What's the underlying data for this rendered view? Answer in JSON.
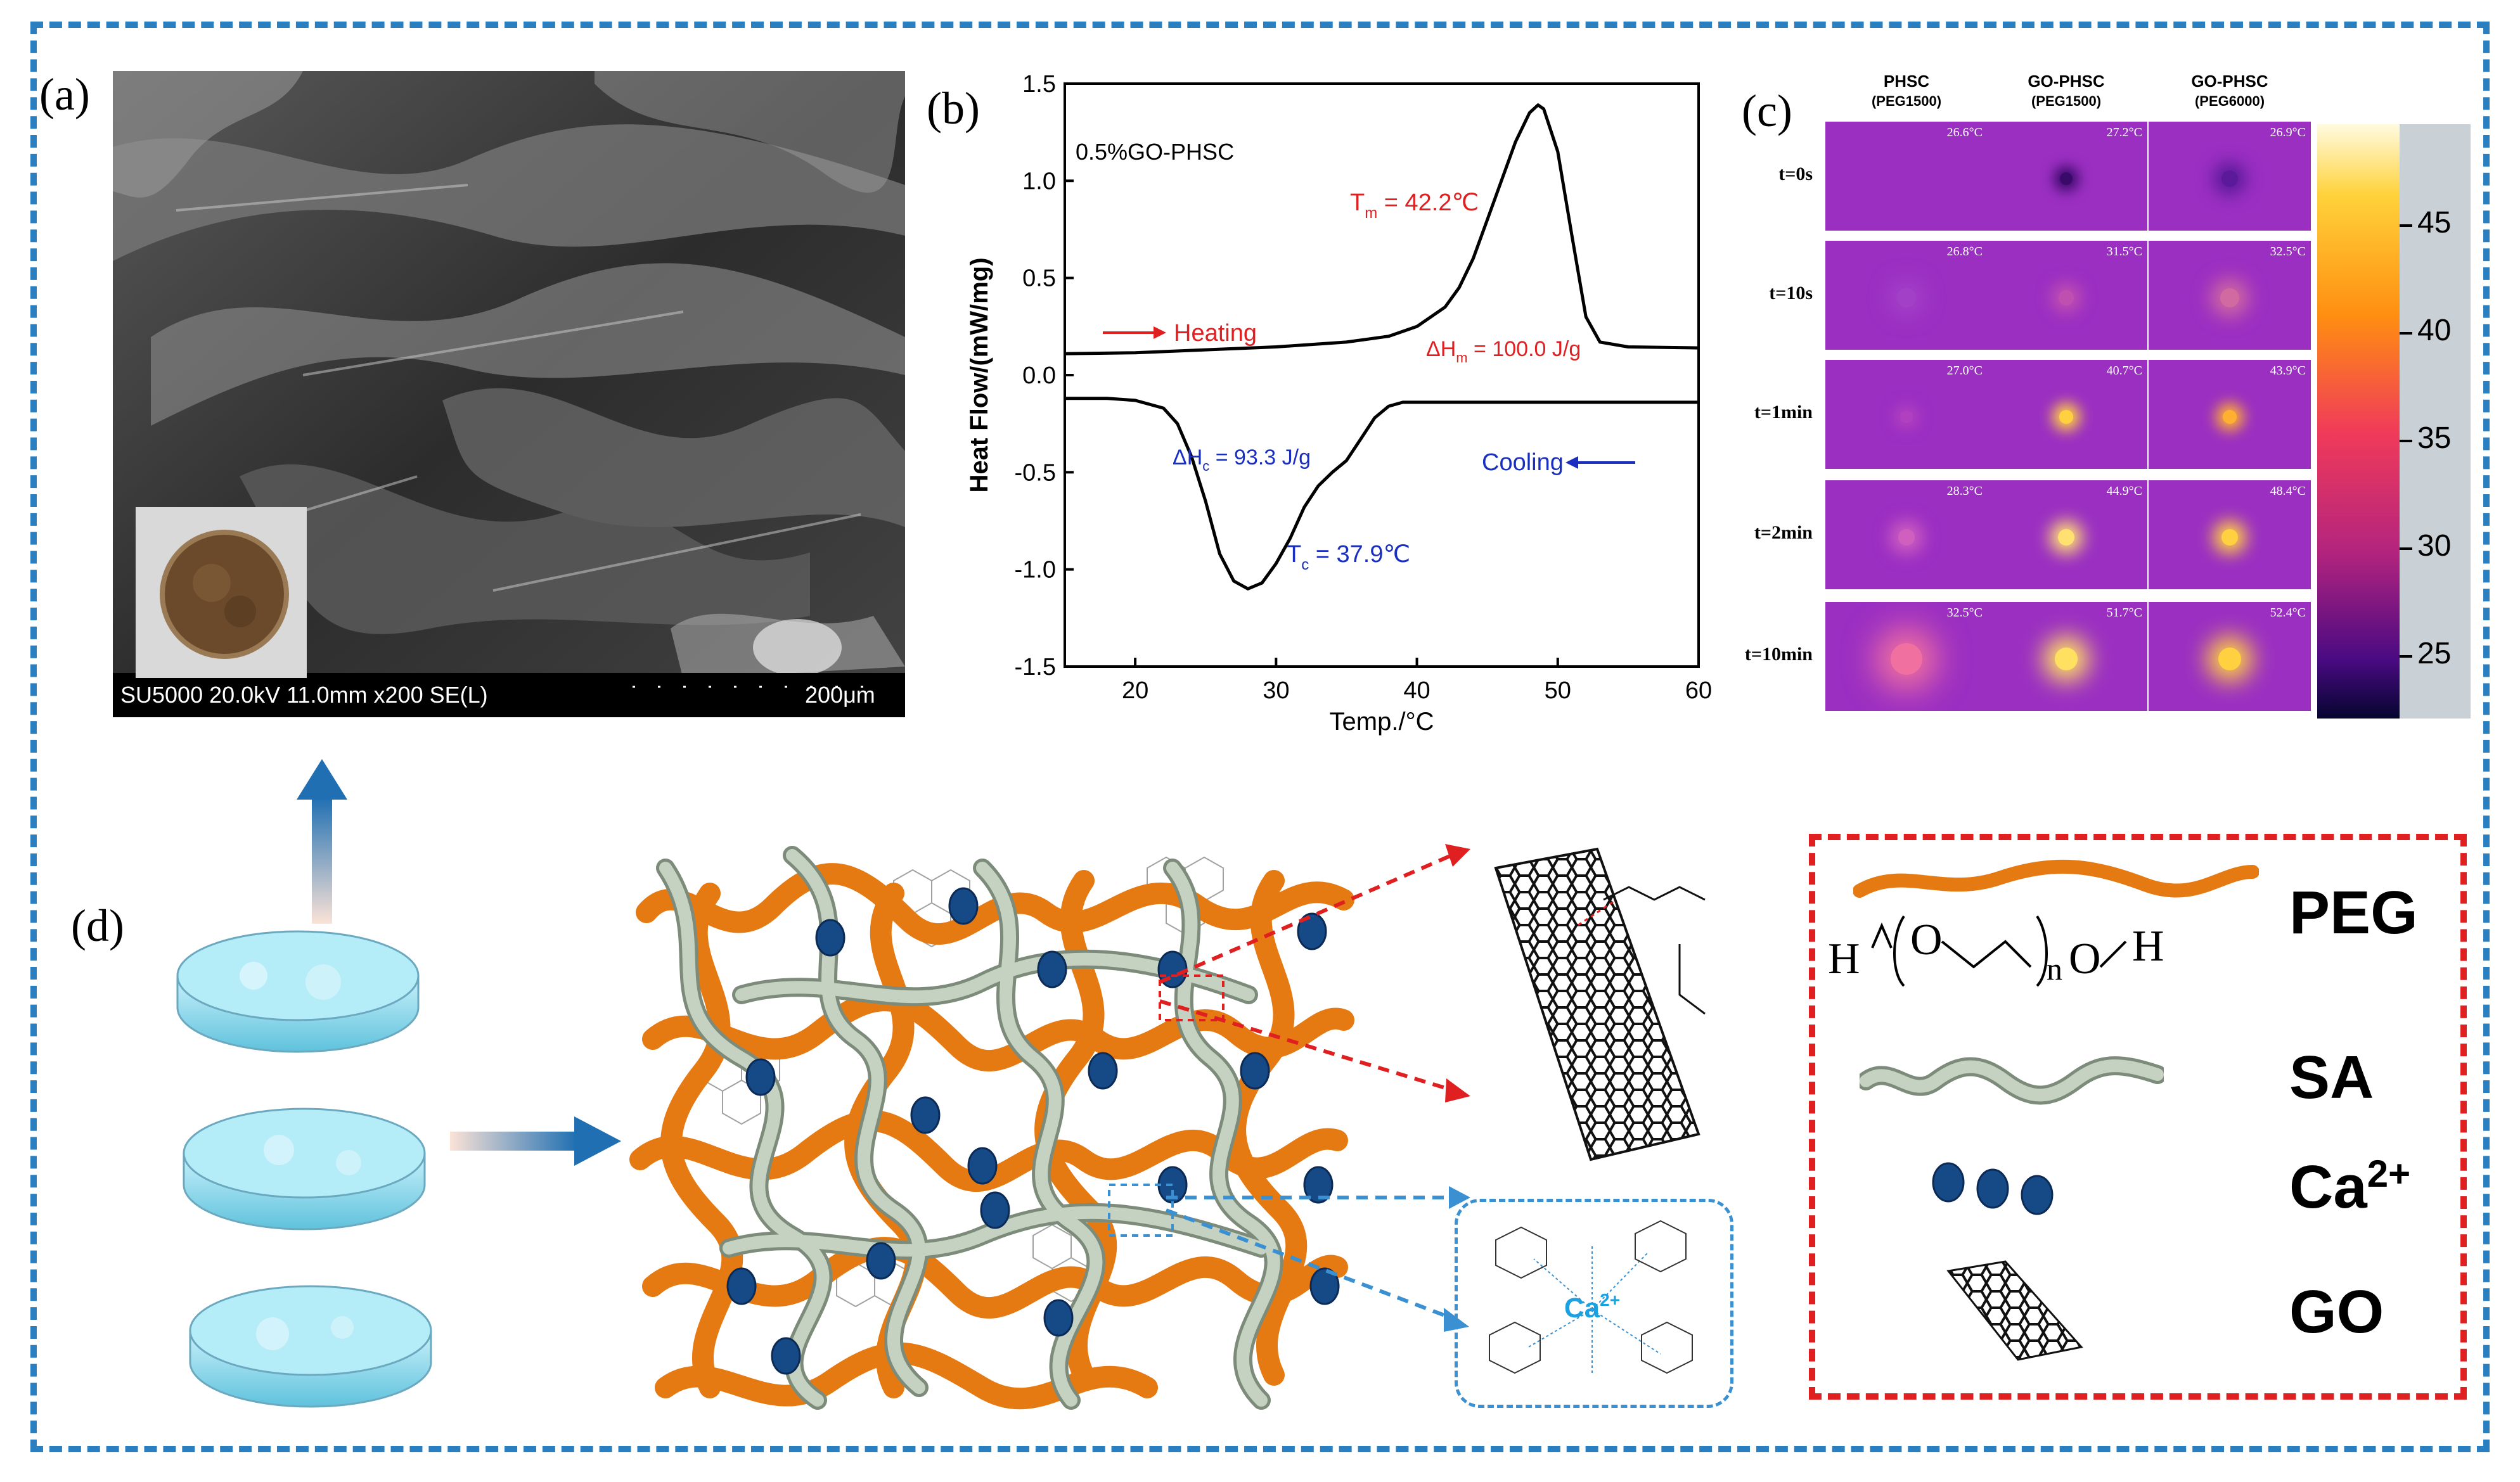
{
  "labels": {
    "a": "(a)",
    "b": "(b)",
    "c": "(c)",
    "d": "(d)"
  },
  "sem": {
    "info": "SU5000 20.0kV 11.0mm x200 SE(L)",
    "scale": "200μm"
  },
  "chart_data": {
    "type": "line",
    "title": "0.5%GO-PHSC",
    "xlabel": "Temp./°C",
    "ylabel": "Heat Flow/(mW/mg)",
    "xlim": [
      15,
      60
    ],
    "ylim": [
      -1.5,
      1.5
    ],
    "xticks": [
      "20",
      "30",
      "40",
      "50",
      "60"
    ],
    "yticks": [
      "1.5",
      "1.0",
      "0.5",
      "0.0",
      "-0.5",
      "-1.0",
      "-1.5"
    ],
    "series": [
      {
        "name": "Heating",
        "x": [
          15,
          20,
          25,
          30,
          35,
          38,
          40,
          42,
          43,
          44,
          45,
          46,
          47,
          48,
          48.6,
          49,
          50,
          51,
          52,
          53,
          55,
          60
        ],
        "y": [
          0.11,
          0.115,
          0.13,
          0.145,
          0.17,
          0.2,
          0.25,
          0.35,
          0.45,
          0.6,
          0.8,
          1.0,
          1.2,
          1.35,
          1.39,
          1.37,
          1.15,
          0.72,
          0.3,
          0.17,
          0.145,
          0.14
        ]
      },
      {
        "name": "Cooling",
        "x": [
          15,
          18,
          20,
          22,
          23,
          24,
          25,
          26,
          27,
          28,
          29,
          30,
          31,
          32,
          33,
          34,
          35,
          36,
          37,
          38,
          39,
          40,
          45,
          60
        ],
        "y": [
          -0.12,
          -0.12,
          -0.13,
          -0.17,
          -0.25,
          -0.42,
          -0.65,
          -0.92,
          -1.06,
          -1.1,
          -1.07,
          -0.97,
          -0.84,
          -0.68,
          -0.57,
          -0.5,
          -0.44,
          -0.33,
          -0.22,
          -0.16,
          -0.14,
          -0.14,
          -0.14,
          -0.14
        ]
      }
    ],
    "annotations": {
      "sample": "0.5%GO-PHSC",
      "tm_label": "T",
      "tm_sub": "m",
      "tm_value": " = 42.2℃",
      "dhm_label": "ΔH",
      "dhm_sub": "m",
      "dhm_value": " = 100.0 J/g",
      "dhc_label": "ΔH",
      "dhc_sub": "c",
      "dhc_value": " = 93.3 J/g",
      "tc_label": "T",
      "tc_sub": "c",
      "tc_value": " = 37.9℃",
      "heating": "Heating",
      "cooling": "Cooling"
    }
  },
  "thermal": {
    "columns": [
      {
        "name": "PHSC",
        "sub": "(PEG1500)"
      },
      {
        "name": "GO-PHSC",
        "sub": "(PEG1500)"
      },
      {
        "name": "GO-PHSC",
        "sub": "(PEG6000)"
      }
    ],
    "rows": [
      {
        "time": "t=0s",
        "temps": [
          "26.6°C",
          "27.2°C",
          "26.9°C"
        ]
      },
      {
        "time": "t=10s",
        "temps": [
          "26.8°C",
          "31.5°C",
          "32.5°C"
        ]
      },
      {
        "time": "t=1min",
        "temps": [
          "27.0°C",
          "40.7°C",
          "43.9°C"
        ]
      },
      {
        "time": "t=2min",
        "temps": [
          "28.3°C",
          "44.9°C",
          "48.4°C"
        ]
      },
      {
        "time": "t=10min",
        "temps": [
          "32.5°C",
          "51.7°C",
          "52.4°C"
        ]
      }
    ],
    "colorbar_ticks": [
      "45",
      "40",
      "35",
      "30",
      "25"
    ]
  },
  "legend": {
    "peg": "PEG",
    "sa": "SA",
    "ca": "Ca",
    "ca_sup": "2+",
    "go": "GO",
    "formula_h1": "H",
    "formula_o1": "O",
    "formula_n": "n",
    "formula_o2": "O",
    "formula_h2": "H"
  },
  "ca_box": {
    "ion": "Ca",
    "ion_sup": "2+"
  }
}
